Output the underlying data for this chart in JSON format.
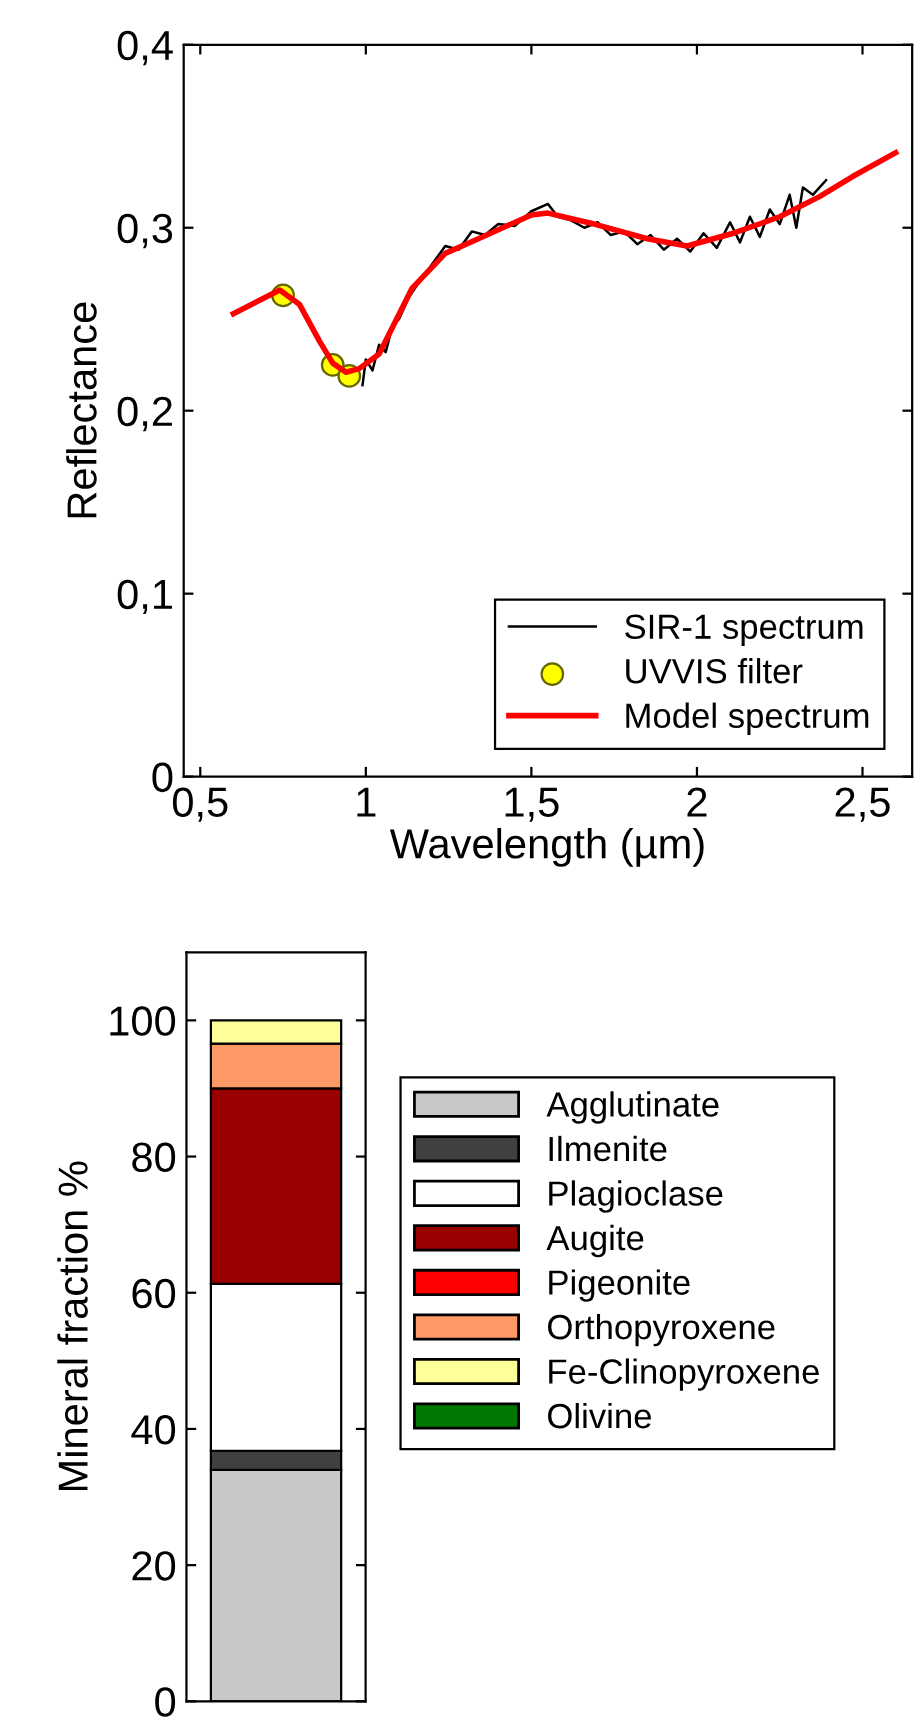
{
  "chart_data": [
    {
      "type": "line",
      "xlabel": "Wavelength (µm)",
      "ylabel": "Reflectance",
      "xlim": [
        0.45,
        2.65
      ],
      "ylim": [
        0,
        0.4
      ],
      "xticks": [
        {
          "value": 0.5,
          "label": "0,5"
        },
        1,
        {
          "value": 1.5,
          "label": "1,5"
        },
        2,
        {
          "value": 2.5,
          "label": "2,5"
        }
      ],
      "yticks": [
        0,
        {
          "value": 0.1,
          "label": "0,1"
        },
        {
          "value": 0.2,
          "label": "0,2"
        },
        {
          "value": 0.3,
          "label": "0,3"
        },
        {
          "value": 0.4,
          "label": "0,4"
        }
      ],
      "grid": false,
      "legend": "bottom right",
      "series": [
        {
          "name": "SIR-1 spectrum",
          "color": "#000000",
          "type": "line",
          "marker": "none",
          "x": [
            0.99,
            1.0,
            1.02,
            1.04,
            1.06,
            1.08,
            1.1,
            1.13,
            1.16,
            1.2,
            1.24,
            1.28,
            1.32,
            1.36,
            1.4,
            1.45,
            1.5,
            1.55,
            1.58,
            1.62,
            1.66,
            1.7,
            1.74,
            1.78,
            1.82,
            1.86,
            1.9,
            1.94,
            1.98,
            2.02,
            2.06,
            2.1,
            2.13,
            2.16,
            2.19,
            2.22,
            2.25,
            2.28,
            2.3,
            2.32,
            2.35,
            2.39
          ],
          "values": [
            0.214,
            0.228,
            0.222,
            0.236,
            0.232,
            0.246,
            0.25,
            0.262,
            0.27,
            0.28,
            0.29,
            0.288,
            0.298,
            0.296,
            0.302,
            0.301,
            0.309,
            0.313,
            0.306,
            0.304,
            0.3,
            0.303,
            0.296,
            0.298,
            0.291,
            0.296,
            0.288,
            0.294,
            0.287,
            0.297,
            0.289,
            0.303,
            0.292,
            0.306,
            0.295,
            0.31,
            0.302,
            0.318,
            0.3,
            0.322,
            0.318,
            0.326
          ]
        },
        {
          "name": "UVVIS filter",
          "color": "#ffff00",
          "type": "scatter",
          "marker": "circle",
          "x": [
            0.75,
            0.9,
            0.95
          ],
          "values": [
            0.263,
            0.225,
            0.219
          ]
        },
        {
          "name": "Model spectrum",
          "color": "#ff0000",
          "type": "line",
          "marker": "none",
          "x": [
            0.6,
            0.74,
            0.8,
            0.86,
            0.9,
            0.94,
            0.98,
            1.04,
            1.14,
            1.24,
            1.34,
            1.5,
            1.55,
            1.69,
            1.85,
            1.97,
            2.11,
            2.25,
            2.37,
            2.47,
            2.6
          ],
          "values": [
            0.253,
            0.266,
            0.258,
            0.238,
            0.226,
            0.221,
            0.223,
            0.231,
            0.267,
            0.286,
            0.294,
            0.307,
            0.308,
            0.302,
            0.294,
            0.29,
            0.297,
            0.306,
            0.317,
            0.328,
            0.341
          ]
        }
      ]
    },
    {
      "type": "bar",
      "stacked": true,
      "ylabel": "Mineral fraction %",
      "categories": [
        null
      ],
      "ylim": [
        0,
        110
      ],
      "yticks": [
        0,
        20,
        40,
        60,
        80,
        100
      ],
      "grid": false,
      "legend": "right",
      "series": [
        {
          "name": "Agglutinate",
          "color": "#c8c8c8",
          "values": [
            34.0
          ]
        },
        {
          "name": "Ilmenite",
          "color": "#404040",
          "values": [
            2.8
          ]
        },
        {
          "name": "Plagioclase",
          "color": "#ffffff",
          "values": [
            24.5
          ]
        },
        {
          "name": "Augite",
          "color": "#990000",
          "values": [
            28.7
          ]
        },
        {
          "name": "Pigeonite",
          "color": "#ff0000",
          "values": [
            0
          ]
        },
        {
          "name": "Orthopyroxene",
          "color": "#ff9966",
          "values": [
            6.6
          ]
        },
        {
          "name": "Fe-Clinopyroxene",
          "color": "#ffff99",
          "values": [
            3.4
          ]
        },
        {
          "name": "Olivine",
          "color": "#007700",
          "values": [
            0
          ]
        }
      ]
    }
  ]
}
